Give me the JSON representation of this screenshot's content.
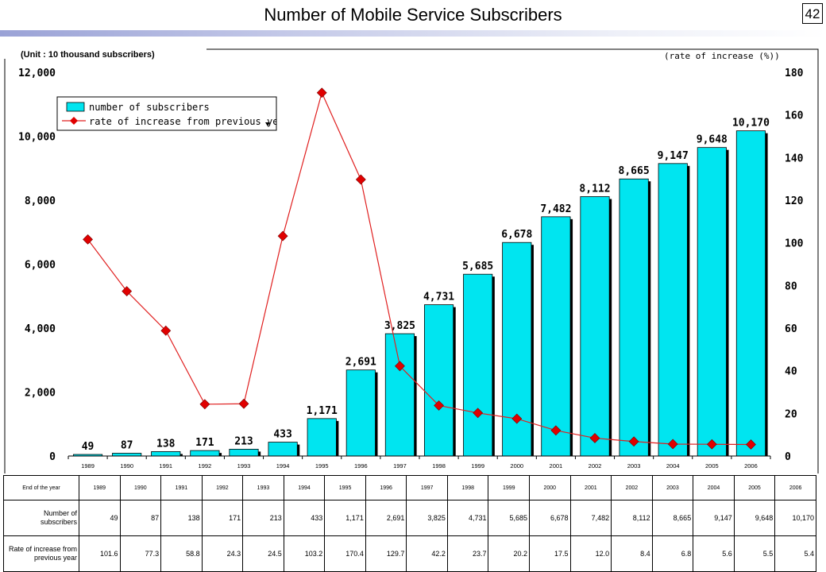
{
  "page": {
    "title": "Number of Mobile Service Subscribers",
    "page_number": "42",
    "unit_label": "(Unit : 10 thousand subscribers)",
    "rate_axis_label": "(rate of increase (%))"
  },
  "chart_data": {
    "type": "bar",
    "categories": [
      "1989",
      "1990",
      "1991",
      "1992",
      "1993",
      "1994",
      "1995",
      "1996",
      "1997",
      "1998",
      "1999",
      "2000",
      "2001",
      "2002",
      "2003",
      "2004",
      "2005",
      "2006"
    ],
    "series": [
      {
        "name": "number of subscribers",
        "type": "bar",
        "axis": "left",
        "values": [
          49,
          87,
          138,
          171,
          213,
          433,
          1171,
          2691,
          3825,
          4731,
          5685,
          6678,
          7482,
          8112,
          8665,
          9147,
          9648,
          10170
        ],
        "data_labels": [
          "49",
          "87",
          "138",
          "171",
          "213",
          "433",
          "1,171",
          "2,691",
          "3,825",
          "4,731",
          "5,685",
          "6,678",
          "7,482",
          "8,112",
          "8,665",
          "9,147",
          "9,648",
          "10,170"
        ]
      },
      {
        "name": "rate of increase from previous year",
        "type": "line",
        "axis": "right",
        "values": [
          101.6,
          77.3,
          58.8,
          24.3,
          24.5,
          103.2,
          170.4,
          129.7,
          42.2,
          23.7,
          20.2,
          17.5,
          12.0,
          8.4,
          6.8,
          5.6,
          5.5,
          5.4
        ]
      }
    ],
    "left_axis": {
      "ylim": [
        0,
        12000
      ],
      "ticks": [
        "0",
        "2,000",
        "4,000",
        "6,000",
        "8,000",
        "10,000",
        "12,000"
      ]
    },
    "right_axis": {
      "ylim": [
        0,
        180
      ],
      "ticks": [
        "0",
        "20",
        "40",
        "60",
        "80",
        "100",
        "120",
        "140",
        "160",
        "180"
      ]
    },
    "legend_position": "top-left",
    "colors": {
      "bar": "#00e5f0",
      "line": "#e02020",
      "marker": "#e00000"
    }
  },
  "table": {
    "year_header": "End of the year",
    "subscribers_header": "Number of subscribers",
    "rate_header": "Rate of increase from previous year",
    "years": [
      "1989",
      "1990",
      "1991",
      "1992",
      "1993",
      "1994",
      "1995",
      "1996",
      "1997",
      "1998",
      "1999",
      "2000",
      "2001",
      "2002",
      "2003",
      "2004",
      "2005",
      "2006"
    ],
    "subscribers": [
      "49",
      "87",
      "138",
      "171",
      "213",
      "433",
      "1,171",
      "2,691",
      "3,825",
      "4,731",
      "5,685",
      "6,678",
      "7,482",
      "8,112",
      "8,665",
      "9,147",
      "9,648",
      "10,170"
    ],
    "rates": [
      "101.6",
      "77.3",
      "58.8",
      "24.3",
      "24.5",
      "103.2",
      "170.4",
      "129.7",
      "42.2",
      "23.7",
      "20.2",
      "17.5",
      "12.0",
      "8.4",
      "6.8",
      "5.6",
      "5.5",
      "5.4"
    ]
  }
}
